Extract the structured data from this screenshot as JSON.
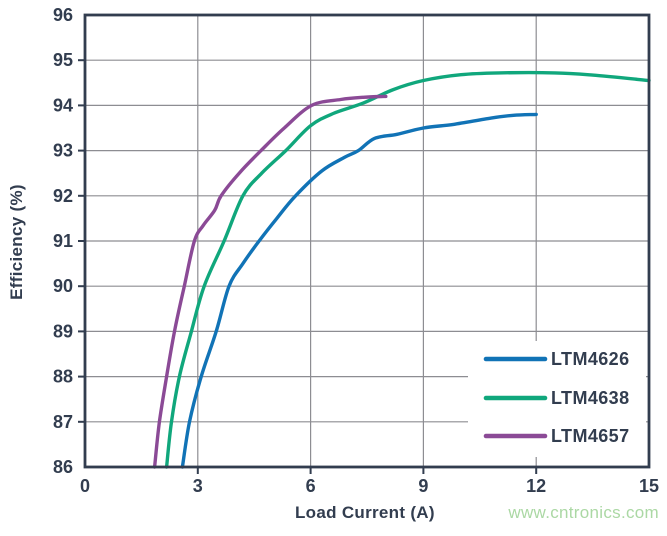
{
  "watermark": {
    "text": "www.cntronics.com",
    "color": "#abd8a4"
  },
  "chart_data": {
    "type": "line",
    "title": "",
    "xlabel": "Load Current (A)",
    "ylabel": "Efficiency (%)",
    "xlim": [
      0,
      15
    ],
    "ylim": [
      86,
      96
    ],
    "x_ticks": [
      0,
      3,
      6,
      9,
      12,
      15
    ],
    "y_ticks": [
      86,
      87,
      88,
      89,
      90,
      91,
      92,
      93,
      94,
      95,
      96
    ],
    "grid": true,
    "legend_position": "inside-bottom-right",
    "colors": {
      "axis": "#323d4f",
      "grid": "#8d8d92",
      "background": "#ffffff"
    },
    "series": [
      {
        "name": "LTM4626",
        "color": "#1173b6",
        "points": [
          [
            2.59,
            86
          ],
          [
            2.78,
            87
          ],
          [
            3.09,
            88
          ],
          [
            3.49,
            89
          ],
          [
            3.83,
            90
          ],
          [
            4.2,
            90.5
          ],
          [
            4.63,
            91
          ],
          [
            5.1,
            91.5
          ],
          [
            5.6,
            92
          ],
          [
            6.3,
            92.55
          ],
          [
            6.9,
            92.85
          ],
          [
            7.27,
            93
          ],
          [
            7.7,
            93.27
          ],
          [
            8.3,
            93.36
          ],
          [
            9.0,
            93.5
          ],
          [
            9.8,
            93.58
          ],
          [
            10.8,
            93.72
          ],
          [
            11.4,
            93.78
          ],
          [
            12.0,
            93.8
          ]
        ]
      },
      {
        "name": "LTM4638",
        "color": "#10a77c",
        "points": [
          [
            2.17,
            86
          ],
          [
            2.3,
            87
          ],
          [
            2.51,
            88
          ],
          [
            2.83,
            89
          ],
          [
            3.17,
            90
          ],
          [
            3.7,
            91
          ],
          [
            4.2,
            92
          ],
          [
            4.7,
            92.5
          ],
          [
            5.34,
            93
          ],
          [
            6.0,
            93.55
          ],
          [
            6.6,
            93.82
          ],
          [
            7.4,
            94.05
          ],
          [
            8.2,
            94.35
          ],
          [
            9.0,
            94.55
          ],
          [
            10.0,
            94.68
          ],
          [
            11.0,
            94.72
          ],
          [
            12.5,
            94.72
          ],
          [
            13.5,
            94.67
          ],
          [
            15.0,
            94.55
          ]
        ]
      },
      {
        "name": "LTM4657",
        "color": "#8b4a96",
        "points": [
          [
            1.85,
            86
          ],
          [
            1.98,
            87
          ],
          [
            2.17,
            88
          ],
          [
            2.38,
            89
          ],
          [
            2.64,
            90
          ],
          [
            2.91,
            91
          ],
          [
            3.15,
            91.35
          ],
          [
            3.45,
            91.68
          ],
          [
            3.62,
            92
          ],
          [
            4.1,
            92.5
          ],
          [
            4.68,
            93
          ],
          [
            5.3,
            93.5
          ],
          [
            6.03,
            94
          ],
          [
            6.8,
            94.13
          ],
          [
            7.4,
            94.18
          ],
          [
            8.0,
            94.2
          ]
        ]
      }
    ]
  }
}
